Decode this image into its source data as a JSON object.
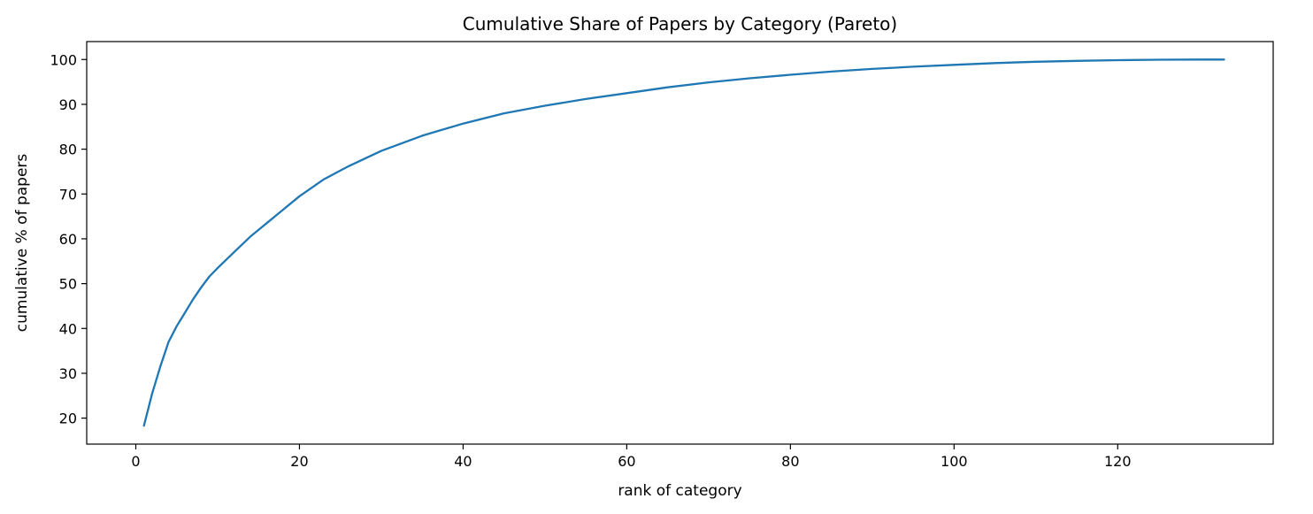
{
  "chart_data": {
    "type": "line",
    "title": "Cumulative Share of Papers by Category (Pareto)",
    "xlabel": "rank of category",
    "ylabel": "cumulative % of papers",
    "xlim": [
      -6,
      139
    ],
    "ylim": [
      14.2,
      104
    ],
    "xticks": [
      0,
      20,
      40,
      60,
      80,
      100,
      120
    ],
    "yticks": [
      20,
      30,
      40,
      50,
      60,
      70,
      80,
      90,
      100
    ],
    "grid": false,
    "legend": "none",
    "series": [
      {
        "color": "#1f77b4",
        "x": [
          1,
          2,
          3,
          4,
          5,
          6,
          7,
          8,
          9,
          10,
          12,
          14,
          16,
          18,
          20,
          23,
          26,
          30,
          35,
          40,
          45,
          50,
          55,
          60,
          65,
          70,
          75,
          80,
          85,
          90,
          95,
          100,
          105,
          110,
          115,
          120,
          125,
          130,
          133
        ],
        "y": [
          18.3,
          25.5,
          31.5,
          37.0,
          40.5,
          43.5,
          46.5,
          49.2,
          51.6,
          53.5,
          57.0,
          60.5,
          63.5,
          66.5,
          69.5,
          73.3,
          76.2,
          79.6,
          83.0,
          85.7,
          88.0,
          89.7,
          91.2,
          92.5,
          93.8,
          94.9,
          95.8,
          96.6,
          97.3,
          97.9,
          98.4,
          98.8,
          99.2,
          99.5,
          99.7,
          99.85,
          99.95,
          100.0,
          100.0
        ]
      }
    ]
  }
}
